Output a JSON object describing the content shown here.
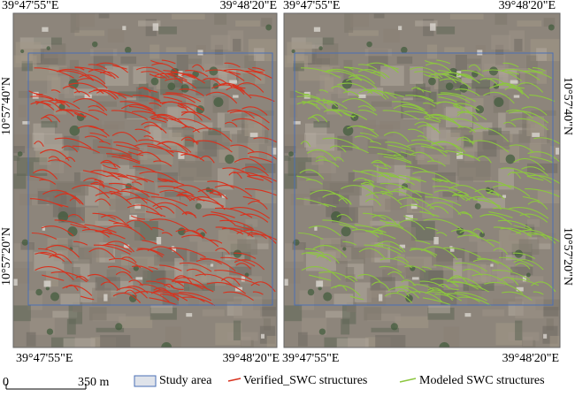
{
  "panels": [
    {
      "top_labels": [
        "39°47'55\"E",
        "39°48'20\"E"
      ],
      "bottom_labels": [
        "39°47'55\"E",
        "39°48'20\"E"
      ],
      "side_labels": [
        "10°57'40\"N",
        "10°57'20\"N"
      ],
      "structure_color": "#d8321e"
    },
    {
      "top_labels": [
        "39°47'55\"E",
        "39°48'20\"E"
      ],
      "bottom_labels": [
        "39°47'55\"E",
        "39°48'20\"E"
      ],
      "side_labels": [
        "10°57'40\"N",
        "10°57'20\"N"
      ],
      "structure_color": "#8cc63f"
    }
  ],
  "scale_bar": {
    "start": "0",
    "end": "350 m"
  },
  "legend": [
    {
      "label": "Study area",
      "color": "#4a6fb5"
    },
    {
      "label": "Verified_SWC structures",
      "color": "#d8321e"
    },
    {
      "label": "Modeled SWC structures",
      "color": "#8cc63f"
    }
  ]
}
